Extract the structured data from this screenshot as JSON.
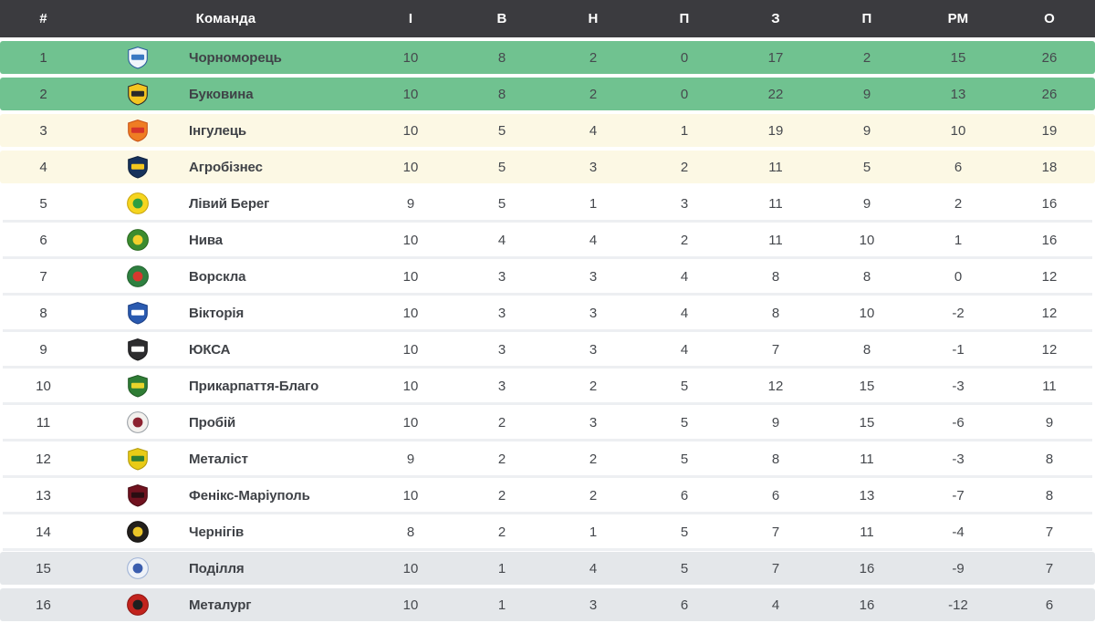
{
  "table": {
    "columns": [
      "#",
      "Команда",
      "І",
      "В",
      "Н",
      "П",
      "З",
      "П",
      "РМ",
      "О"
    ],
    "rows": [
      {
        "rank": "1",
        "team": "Чорноморець",
        "zone": "green",
        "stats": [
          "10",
          "8",
          "2",
          "0",
          "17",
          "2",
          "15",
          "26"
        ],
        "icon": {
          "shape": "shield",
          "c1": "#f0f5fb",
          "c2": "#3a79c3",
          "c3": "#2a5d9c"
        }
      },
      {
        "rank": "2",
        "team": "Буковина",
        "zone": "green",
        "stats": [
          "10",
          "8",
          "2",
          "0",
          "22",
          "9",
          "13",
          "26"
        ],
        "icon": {
          "shape": "shield",
          "c1": "#f4c520",
          "c2": "#2a2a2a",
          "c3": "#2a2a2a"
        }
      },
      {
        "rank": "3",
        "team": "Інгулець",
        "zone": "cream",
        "stats": [
          "10",
          "5",
          "4",
          "1",
          "19",
          "9",
          "10",
          "19"
        ],
        "icon": {
          "shape": "shield",
          "c1": "#ef7d23",
          "c2": "#d6342a",
          "c3": "#c8551a"
        }
      },
      {
        "rank": "4",
        "team": "Агробізнес",
        "zone": "cream",
        "stats": [
          "10",
          "5",
          "3",
          "2",
          "11",
          "5",
          "6",
          "18"
        ],
        "icon": {
          "shape": "shield",
          "c1": "#16325c",
          "c2": "#f3c71e",
          "c3": "#10233f"
        }
      },
      {
        "rank": "5",
        "team": "Лівий Берег",
        "zone": "white",
        "stats": [
          "9",
          "5",
          "1",
          "3",
          "11",
          "9",
          "2",
          "16"
        ],
        "icon": {
          "shape": "circle",
          "c1": "#f6d51f",
          "c2": "#2f9e41",
          "c3": "#caa70f"
        }
      },
      {
        "rank": "6",
        "team": "Нива",
        "zone": "white",
        "stats": [
          "10",
          "4",
          "4",
          "2",
          "11",
          "10",
          "1",
          "16"
        ],
        "icon": {
          "shape": "circle",
          "c1": "#3c8c2f",
          "c2": "#f3d02c",
          "c3": "#2c6b22"
        }
      },
      {
        "rank": "7",
        "team": "Ворскла",
        "zone": "white",
        "stats": [
          "10",
          "3",
          "3",
          "4",
          "8",
          "8",
          "0",
          "12"
        ],
        "icon": {
          "shape": "circle",
          "c1": "#2e8040",
          "c2": "#d8372e",
          "c3": "#236330"
        }
      },
      {
        "rank": "8",
        "team": "Вікторія",
        "zone": "white",
        "stats": [
          "10",
          "3",
          "3",
          "4",
          "8",
          "10",
          "-2",
          "12"
        ],
        "icon": {
          "shape": "shield",
          "c1": "#2a5ab0",
          "c2": "#ffffff",
          "c3": "#1d4187"
        }
      },
      {
        "rank": "9",
        "team": "ЮКСА",
        "zone": "white",
        "stats": [
          "10",
          "3",
          "3",
          "4",
          "7",
          "8",
          "-1",
          "12"
        ],
        "icon": {
          "shape": "shield",
          "c1": "#2d2d2f",
          "c2": "#ffffff",
          "c3": "#1c1c1e"
        }
      },
      {
        "rank": "10",
        "team": "Прикарпаття-Благо",
        "zone": "white",
        "stats": [
          "10",
          "3",
          "2",
          "5",
          "12",
          "15",
          "-3",
          "11"
        ],
        "icon": {
          "shape": "shield",
          "c1": "#2f7d35",
          "c2": "#e9d32b",
          "c3": "#225c27"
        }
      },
      {
        "rank": "11",
        "team": "Пробій",
        "zone": "white",
        "stats": [
          "10",
          "2",
          "3",
          "5",
          "9",
          "15",
          "-6",
          "9"
        ],
        "icon": {
          "shape": "circle",
          "c1": "#f3f1ee",
          "c2": "#8c2230",
          "c3": "#9aa0a6"
        }
      },
      {
        "rank": "12",
        "team": "Металіст",
        "zone": "white",
        "stats": [
          "9",
          "2",
          "2",
          "5",
          "8",
          "11",
          "-3",
          "8"
        ],
        "icon": {
          "shape": "shield",
          "c1": "#e9cb16",
          "c2": "#2f7d33",
          "c3": "#b49c0e"
        }
      },
      {
        "rank": "13",
        "team": "Фенікс-Маріуполь",
        "zone": "white",
        "stats": [
          "10",
          "2",
          "2",
          "6",
          "6",
          "13",
          "-7",
          "8"
        ],
        "icon": {
          "shape": "shield",
          "c1": "#71121f",
          "c2": "#2a0d12",
          "c3": "#4c0c15"
        }
      },
      {
        "rank": "14",
        "team": "Чернігів",
        "zone": "white",
        "stats": [
          "8",
          "2",
          "1",
          "5",
          "7",
          "11",
          "-4",
          "7"
        ],
        "icon": {
          "shape": "circle",
          "c1": "#221f1c",
          "c2": "#eac528",
          "c3": "#141210"
        }
      },
      {
        "rank": "15",
        "team": "Поділля",
        "zone": "gray",
        "stats": [
          "10",
          "1",
          "4",
          "5",
          "7",
          "16",
          "-9",
          "7"
        ],
        "icon": {
          "shape": "circle",
          "c1": "#eef2f8",
          "c2": "#3a5dae",
          "c3": "#9fb3d6"
        }
      },
      {
        "rank": "16",
        "team": "Металург",
        "zone": "gray",
        "stats": [
          "10",
          "1",
          "3",
          "6",
          "4",
          "16",
          "-12",
          "6"
        ],
        "icon": {
          "shape": "circle",
          "c1": "#c2231d",
          "c2": "#1f1f1f",
          "c3": "#8f1713"
        }
      }
    ]
  },
  "colors": {
    "header_bg": "#3b3b3f",
    "header_text": "#ffffff",
    "zone_promotion_green": "#70c290",
    "zone_playoff_cream": "#fcf8e4",
    "zone_mid_white": "#ffffff",
    "zone_relegation_gray": "#e4e7ea",
    "body_text": "#45484d"
  }
}
